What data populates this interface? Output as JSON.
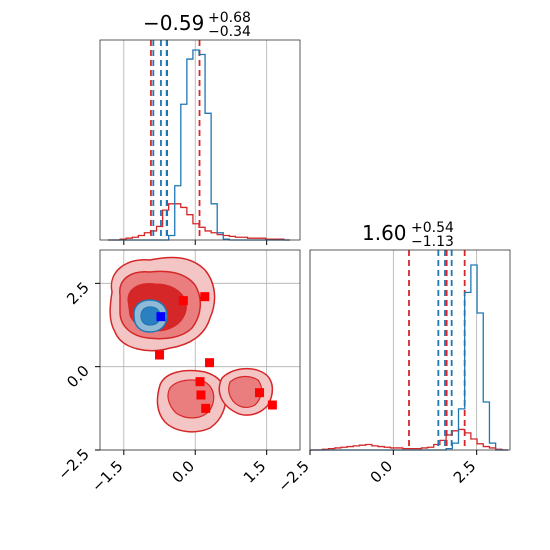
{
  "chart_data": {
    "type": "corner",
    "params": [
      {
        "title_value": "−0.59",
        "title_plus": "+0.68",
        "title_minus": "−0.34",
        "range": [
          -2.0,
          2.2
        ],
        "ticks": [
          -1.5,
          0.0,
          1.5
        ],
        "tick_labels": [
          "−1.5",
          "0.0",
          "1.5"
        ]
      },
      {
        "title_value": "1.60",
        "title_plus": "+0.54",
        "title_minus": "−1.13",
        "range": [
          -2.5,
          3.5
        ],
        "ticks": [
          -2.5,
          0.0,
          2.5
        ],
        "tick_labels": [
          "−2.5",
          "0.0",
          "2.5"
        ]
      }
    ],
    "series": [
      {
        "color": "#d62728",
        "quantiles_p1": [
          -0.93,
          -0.59,
          0.09
        ],
        "quantiles_p2": [
          0.47,
          1.6,
          2.14
        ],
        "hist_p1": [
          0,
          0,
          1,
          2,
          3,
          5,
          8,
          10,
          15,
          33,
          40,
          40,
          36,
          28,
          18,
          14,
          10,
          8,
          6,
          5,
          4,
          3,
          3,
          2,
          2,
          2,
          1,
          1,
          1,
          0
        ],
        "hist_p2": [
          0,
          0,
          1,
          2,
          3,
          4,
          5,
          6,
          7,
          8,
          6,
          5,
          4,
          3,
          3,
          2,
          2,
          2,
          3,
          4,
          8,
          14,
          22,
          28,
          30,
          25,
          16,
          9,
          5,
          3,
          1,
          0
        ],
        "points": [
          {
            "x": -0.25,
            "y": 1.98
          },
          {
            "x": 0.2,
            "y": 2.1
          },
          {
            "x": -0.75,
            "y": 0.35
          },
          {
            "x": 0.3,
            "y": 0.12
          },
          {
            "x": 0.1,
            "y": -0.45
          },
          {
            "x": 0.12,
            "y": -0.85
          },
          {
            "x": 0.22,
            "y": -1.25
          },
          {
            "x": 1.35,
            "y": -0.78
          },
          {
            "x": 1.62,
            "y": -1.15
          }
        ]
      },
      {
        "color": "#1f77b4",
        "quantiles_p1": [
          -0.88,
          -0.72,
          -0.6
        ],
        "quantiles_p2": [
          1.35,
          1.55,
          1.75
        ],
        "hist_p1": [
          0,
          0,
          0,
          0,
          0,
          0,
          0,
          0,
          0,
          0,
          5,
          60,
          150,
          200,
          210,
          205,
          140,
          40,
          8,
          1,
          0,
          0,
          0,
          0,
          0,
          0,
          0,
          0,
          0,
          0
        ],
        "hist_p2": [
          0,
          0,
          0,
          0,
          0,
          0,
          0,
          0,
          0,
          0,
          0,
          0,
          0,
          0,
          0,
          0,
          0,
          0,
          0,
          0,
          0,
          0,
          2,
          10,
          60,
          230,
          270,
          200,
          70,
          10,
          0,
          0
        ],
        "points": [
          {
            "x": -0.72,
            "y": 1.5
          }
        ]
      }
    ],
    "grid": true
  }
}
